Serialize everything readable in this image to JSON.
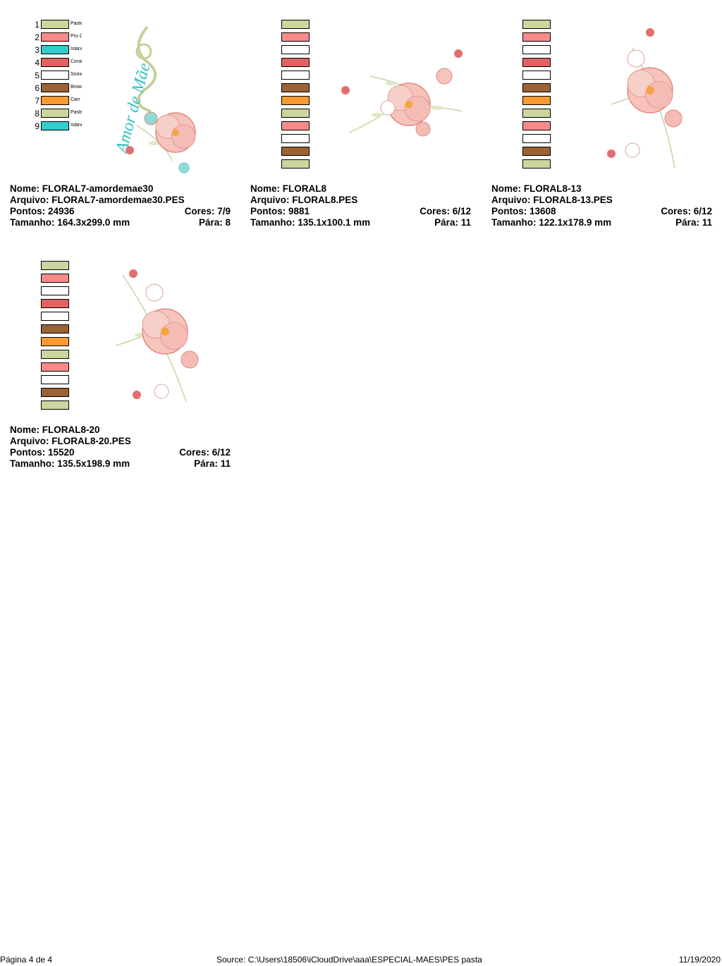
{
  "colors": {
    "pastel_green": "#cbd59e",
    "pink": "#f88a8a",
    "teal": "#33cccc",
    "coral": "#e26262",
    "white": "#ffffff",
    "brown": "#9b6234",
    "orange": "#ff9a33"
  },
  "designs": [
    {
      "nome_label": "Nome:",
      "nome": "FLORAL7-amordemae30",
      "arquivo_label": "Arquivo:",
      "arquivo": "FLORAL7-amordemae30.PES",
      "pontos_label": "Pontos:",
      "pontos": "24936",
      "cores_label": "Cores:",
      "cores": "7/9",
      "tamanho_label": "Tamanho:",
      "tamanho": "164.3x299.0 mm",
      "para_label": "Pára:",
      "para": "8",
      "art_text": "Amor de Mãe",
      "swatches": [
        {
          "n": "1",
          "c": "#cbd59e",
          "label": "Pastel"
        },
        {
          "n": "2",
          "c": "#f88a8a",
          "label": "Pro C"
        },
        {
          "n": "3",
          "c": "#33cccc",
          "label": "Island"
        },
        {
          "n": "4",
          "c": "#e26262",
          "label": "Coral"
        },
        {
          "n": "5",
          "c": "#ffffff",
          "label": "Snow"
        },
        {
          "n": "6",
          "c": "#9b6234",
          "label": "Brown"
        },
        {
          "n": "7",
          "c": "#ff9a33",
          "label": "Carr"
        },
        {
          "n": "8",
          "c": "#cbd59e",
          "label": "Pastel"
        },
        {
          "n": "9",
          "c": "#33cccc",
          "label": "Island"
        }
      ]
    },
    {
      "nome_label": "Nome:",
      "nome": "FLORAL8",
      "arquivo_label": "Arquivo:",
      "arquivo": "FLORAL8.PES",
      "pontos_label": "Pontos:",
      "pontos": "9881",
      "cores_label": "Cores:",
      "cores": "6/12",
      "tamanho_label": "Tamanho:",
      "tamanho": "135.1x100.1 mm",
      "para_label": "Pára:",
      "para": "11",
      "swatches": [
        {
          "c": "#cbd59e"
        },
        {
          "c": "#f88a8a"
        },
        {
          "c": "#ffffff"
        },
        {
          "c": "#e26262"
        },
        {
          "c": "#ffffff"
        },
        {
          "c": "#9b6234"
        },
        {
          "c": "#ff9a33"
        },
        {
          "c": "#cbd59e"
        },
        {
          "c": "#f88a8a"
        },
        {
          "c": "#ffffff"
        },
        {
          "c": "#9b6234"
        },
        {
          "c": "#cbd59e"
        }
      ]
    },
    {
      "nome_label": "Nome:",
      "nome": "FLORAL8-13",
      "arquivo_label": "Arquivo:",
      "arquivo": "FLORAL8-13.PES",
      "pontos_label": "Pontos:",
      "pontos": "13608",
      "cores_label": "Cores:",
      "cores": "6/12",
      "tamanho_label": "Tamanho:",
      "tamanho": "122.1x178.9 mm",
      "para_label": "Pára:",
      "para": "11",
      "swatches": [
        {
          "c": "#cbd59e"
        },
        {
          "c": "#f88a8a"
        },
        {
          "c": "#ffffff"
        },
        {
          "c": "#e26262"
        },
        {
          "c": "#ffffff"
        },
        {
          "c": "#9b6234"
        },
        {
          "c": "#ff9a33"
        },
        {
          "c": "#cbd59e"
        },
        {
          "c": "#f88a8a"
        },
        {
          "c": "#ffffff"
        },
        {
          "c": "#9b6234"
        },
        {
          "c": "#cbd59e"
        }
      ]
    },
    {
      "nome_label": "Nome:",
      "nome": "FLORAL8-20",
      "arquivo_label": "Arquivo:",
      "arquivo": "FLORAL8-20.PES",
      "pontos_label": "Pontos:",
      "pontos": "15520",
      "cores_label": "Cores:",
      "cores": "6/12",
      "tamanho_label": "Tamanho:",
      "tamanho": "135.5x198.9 mm",
      "para_label": "Pára:",
      "para": "11",
      "swatches": [
        {
          "c": "#cbd59e"
        },
        {
          "c": "#f88a8a"
        },
        {
          "c": "#ffffff"
        },
        {
          "c": "#e26262"
        },
        {
          "c": "#ffffff"
        },
        {
          "c": "#9b6234"
        },
        {
          "c": "#ff9a33"
        },
        {
          "c": "#cbd59e"
        },
        {
          "c": "#f88a8a"
        },
        {
          "c": "#ffffff"
        },
        {
          "c": "#9b6234"
        },
        {
          "c": "#cbd59e"
        }
      ]
    }
  ],
  "footer": {
    "page": "Página 4 de 4",
    "source": "Source: C:\\Users\\18506\\iCloudDrive\\aaa\\ESPECIAL-MAES\\PES pasta",
    "date": "11/19/2020"
  }
}
